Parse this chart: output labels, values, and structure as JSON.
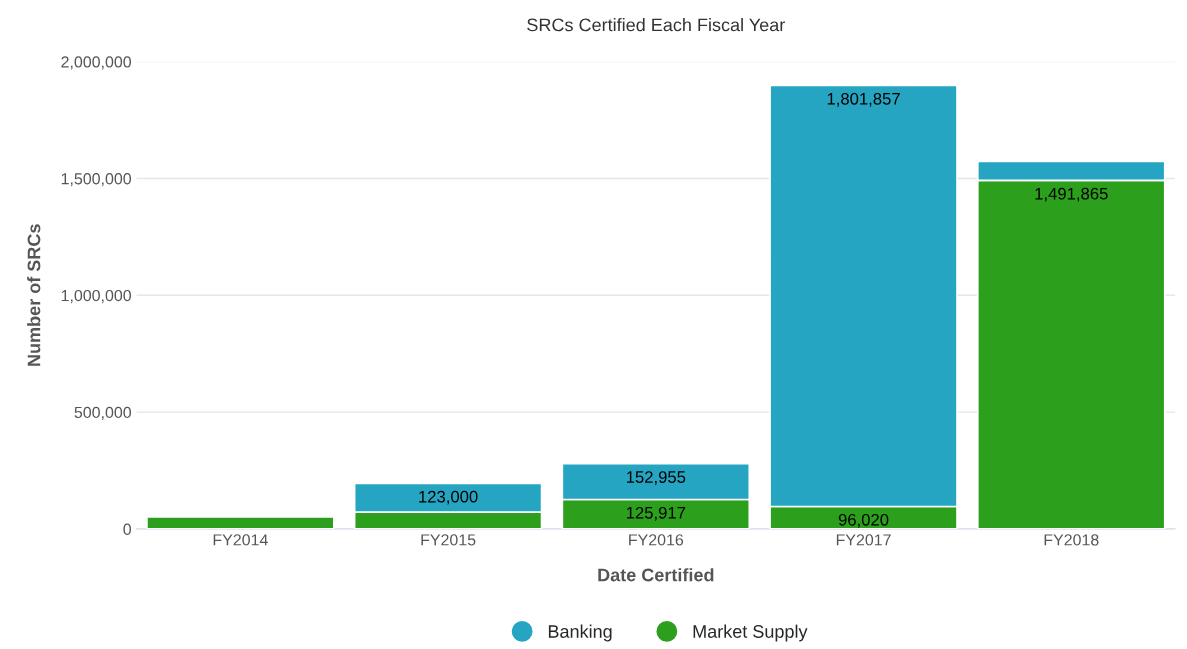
{
  "chart_data": {
    "type": "bar",
    "title": "SRCs Certified Each Fiscal Year",
    "xlabel": "Date Certified",
    "ylabel": "Number of SRCs",
    "categories": [
      "FY2014",
      "FY2015",
      "FY2016",
      "FY2017",
      "FY2018"
    ],
    "stacked": true,
    "series": [
      {
        "name": "Market Supply",
        "color": "#2ca01c",
        "values": [
          51000,
          72000,
          125917,
          96020,
          1491865
        ],
        "value_labels": [
          null,
          null,
          "125,917",
          "96,020",
          "1,491,865"
        ]
      },
      {
        "name": "Banking",
        "color": "#26a5c3",
        "values": [
          null,
          123000,
          152955,
          1801857,
          81000
        ],
        "value_labels": [
          null,
          "123,000",
          "152,955",
          "1,801,857",
          null
        ]
      }
    ],
    "ylim": [
      0,
      2000000
    ],
    "yticks": [
      {
        "value": 0,
        "label": "0"
      },
      {
        "value": 500000,
        "label": "500,000"
      },
      {
        "value": 1000000,
        "label": "1,000,000"
      },
      {
        "value": 1500000,
        "label": "1,500,000"
      },
      {
        "value": 2000000,
        "label": "2,000,000"
      }
    ],
    "grid": "y",
    "legend": "bottom",
    "marker": "circle"
  }
}
